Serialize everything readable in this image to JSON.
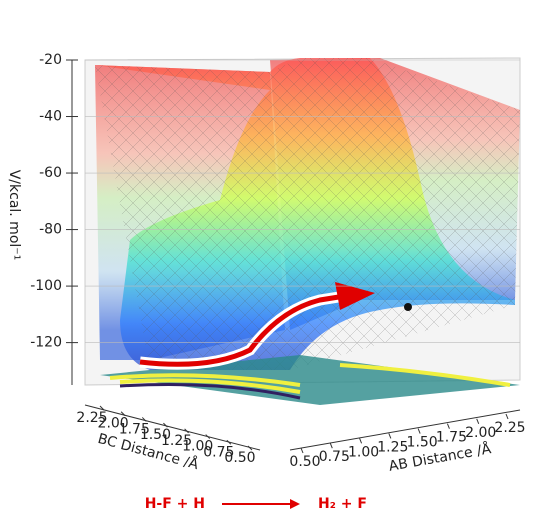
{
  "chart_data": {
    "type": "surface3d",
    "zlabel": "V/kcal. mol⁻¹",
    "xlabel": "AB Distance /Å",
    "ylabel": "BC Distance /Å",
    "zlim": [
      -135,
      -20
    ],
    "zticks": [
      -20,
      -40,
      -60,
      -80,
      -100,
      -120
    ],
    "xlim": [
      0.5,
      2.25
    ],
    "xticks": [
      {
        "value": 0.5,
        "label": "0.50"
      },
      0.75,
      {
        "value": 1,
        "label": "1.00"
      },
      1.25,
      {
        "value": 1.5,
        "label": "1.50"
      },
      1.75,
      {
        "value": 2,
        "label": "2.00"
      },
      2.25
    ],
    "ylim": [
      0.5,
      2.25
    ],
    "yticks": [
      2.25,
      {
        "value": 2,
        "label": "2.00"
      },
      1.75,
      {
        "value": 1.5,
        "label": "1.50"
      },
      1.25,
      {
        "value": 1,
        "label": "1.00"
      },
      0.75,
      {
        "value": 0.5,
        "label": "0.50"
      }
    ],
    "reaction": {
      "reactants": "H-F + H",
      "products": "H₂ + F"
    }
  }
}
